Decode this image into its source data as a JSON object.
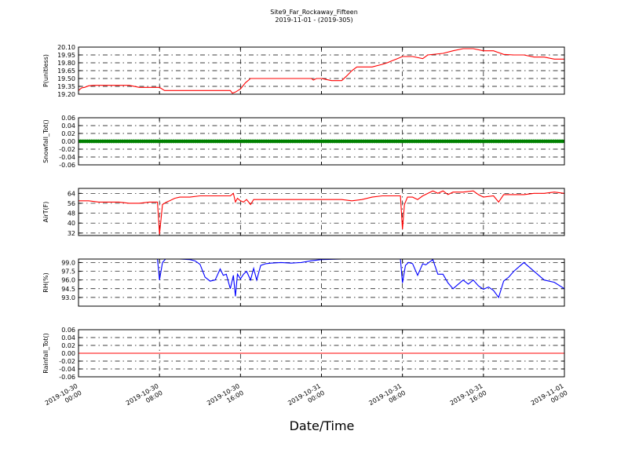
{
  "figure": {
    "title": "Site9_Far_Rockaway_Fifteen",
    "subtitle": "2019-11-01 - (2019-305)",
    "xlabel": "Date/Time"
  },
  "chart_data": [
    {
      "type": "line",
      "ylabel": "P(unitless)",
      "ylim": [
        19.2,
        20.1
      ],
      "yticks": [
        "20.10",
        "19.95",
        "19.80",
        "19.65",
        "19.50",
        "19.35",
        "19.20"
      ],
      "grid": true,
      "color": "#ff0000",
      "x_unit": "hours since 2019-10-30 00:00",
      "x": [
        0,
        0.3,
        0.6,
        1.0,
        1.5,
        2.5,
        4,
        5,
        6,
        7.5,
        8,
        8.5,
        10,
        11,
        12,
        13,
        14,
        15,
        15.2,
        15.5,
        16,
        16.5,
        17,
        18,
        19,
        20,
        21,
        22,
        23,
        23.2,
        23.5,
        24,
        24.5,
        25,
        26,
        26.5,
        27,
        27.5,
        28,
        29,
        30,
        30.5,
        31,
        31.5,
        32,
        32.5,
        33,
        34,
        34.5,
        36,
        37,
        38,
        39,
        40,
        41,
        42,
        43,
        44,
        45,
        46,
        47,
        48
      ],
      "values": [
        19.27,
        19.32,
        19.33,
        19.36,
        19.37,
        19.37,
        19.37,
        19.37,
        19.33,
        19.33,
        19.33,
        19.27,
        19.27,
        19.27,
        19.27,
        19.27,
        19.27,
        19.27,
        19.22,
        19.24,
        19.3,
        19.42,
        19.5,
        19.5,
        19.5,
        19.5,
        19.5,
        19.5,
        19.5,
        19.47,
        19.5,
        19.5,
        19.48,
        19.46,
        19.46,
        19.55,
        19.65,
        19.72,
        19.72,
        19.72,
        19.77,
        19.8,
        19.84,
        19.88,
        19.92,
        19.92,
        19.92,
        19.88,
        19.95,
        19.98,
        20.03,
        20.07,
        20.07,
        20.03,
        20.03,
        19.96,
        19.95,
        19.95,
        19.91,
        19.91,
        19.87,
        19.87
      ]
    },
    {
      "type": "scatter",
      "ylabel": "Snowfall_Tot()",
      "ylim": [
        -0.06,
        0.06
      ],
      "yticks": [
        "0.06",
        "0.04",
        "0.02",
        "0.00",
        "-0.02",
        "-0.04",
        "-0.06"
      ],
      "grid": true,
      "color": "#008000",
      "x_unit": "hours since 2019-10-30 00:00",
      "x_range": [
        0,
        48
      ],
      "value": 0.0
    },
    {
      "type": "line",
      "ylabel": "AirT(F)",
      "ylim": [
        30,
        68
      ],
      "yticks": [
        "64",
        "56",
        "48",
        "40",
        "32"
      ],
      "grid": true,
      "color": "#ff0000",
      "x_unit": "hours since 2019-10-30 00:00",
      "x": [
        0,
        1,
        2,
        3,
        4,
        5,
        6,
        7,
        7.8,
        8.0,
        8.3,
        8.7,
        9,
        9.5,
        10,
        11,
        12,
        13,
        14,
        15,
        15.3,
        15.5,
        15.7,
        16,
        16.3,
        16.6,
        17,
        17.3,
        17.6,
        18,
        19,
        20,
        21,
        22,
        23,
        24,
        25,
        26,
        27,
        28,
        29,
        30,
        31,
        31.8,
        32.0,
        32.2,
        32.5,
        33,
        33.5,
        34,
        35,
        35.5,
        36,
        36.5,
        37,
        38,
        39,
        39.5,
        40,
        41,
        41.5,
        42,
        43,
        44,
        45,
        46,
        47,
        48
      ],
      "values": [
        58,
        58,
        57,
        57,
        57,
        56,
        56,
        57,
        57,
        31,
        55,
        57,
        58,
        60,
        61,
        61,
        62,
        62,
        62,
        62,
        64,
        57,
        60,
        58,
        57,
        59,
        55,
        59,
        59,
        59,
        59,
        59,
        59,
        59,
        59,
        59,
        59,
        59,
        58,
        59,
        61,
        62,
        62,
        62,
        35,
        55,
        61,
        61,
        59,
        62,
        66,
        64,
        66,
        63,
        65,
        65,
        66,
        63,
        61,
        62,
        57,
        63,
        63,
        63,
        64,
        64,
        65,
        64
      ]
    },
    {
      "type": "line",
      "ylabel": "RH(%)",
      "ylim": [
        91.5,
        99.6
      ],
      "yticks": [
        "99.0",
        "97.5",
        "96.0",
        "94.5",
        "93.0"
      ],
      "grid": true,
      "color": "#0000ff",
      "x_unit": "hours since 2019-10-30 00:00",
      "x": [
        0,
        3,
        6,
        7.5,
        7.8,
        8.0,
        8.3,
        8.6,
        9,
        10,
        11,
        11.5,
        12,
        12.5,
        13,
        13.5,
        14,
        14.3,
        14.6,
        15,
        15.3,
        15.5,
        15.7,
        16,
        16.3,
        16.6,
        17,
        17.3,
        17.6,
        18,
        18.5,
        19,
        20,
        21,
        22,
        23,
        24,
        26,
        28,
        30,
        31,
        31.8,
        32.0,
        32.3,
        32.6,
        33,
        33.5,
        34,
        34.3,
        35,
        35.5,
        36,
        36.5,
        37,
        38,
        38.5,
        39,
        39.5,
        40,
        40.5,
        41,
        41.5,
        42,
        42.5,
        43,
        44,
        45,
        46,
        47,
        48
      ],
      "values": [
        99.6,
        99.6,
        99.6,
        99.6,
        99.6,
        96.0,
        99.0,
        99.6,
        99.6,
        99.6,
        99.5,
        99.3,
        98.7,
        96.5,
        95.8,
        96.0,
        97.9,
        96.8,
        97.0,
        94.5,
        96.8,
        93.2,
        97.0,
        96.2,
        97.0,
        97.5,
        96.0,
        98.0,
        96.0,
        98.5,
        98.8,
        98.9,
        99.0,
        98.9,
        99.0,
        99.3,
        99.5,
        99.6,
        99.6,
        99.6,
        99.6,
        99.6,
        95.5,
        98.5,
        99.0,
        98.8,
        96.8,
        98.8,
        98.6,
        99.5,
        97.0,
        97.0,
        95.5,
        94.5,
        96.0,
        95.3,
        96.0,
        95.0,
        94.4,
        94.8,
        94.2,
        93.0,
        95.8,
        96.5,
        97.5,
        99.0,
        97.5,
        96.0,
        95.6,
        94.5
      ]
    },
    {
      "type": "line",
      "ylabel": "Rainfall_Tot()",
      "ylim": [
        -0.06,
        0.06
      ],
      "yticks": [
        "0.06",
        "0.04",
        "0.02",
        "0.00",
        "-0.02",
        "-0.04",
        "-0.06"
      ],
      "grid": true,
      "color": "#ff0000",
      "x_unit": "hours since 2019-10-30 00:00",
      "x": [
        0,
        48
      ],
      "values": [
        0.0,
        0.0
      ]
    }
  ],
  "xticks": [
    {
      "line1": "2019-10-30",
      "line2": "00:00"
    },
    {
      "line1": "2019-10-30",
      "line2": "08:00"
    },
    {
      "line1": "2019-10-30",
      "line2": "16:00"
    },
    {
      "line1": "2019-10-31",
      "line2": "00:00"
    },
    {
      "line1": "2019-10-31",
      "line2": "08:00"
    },
    {
      "line1": "2019-10-31",
      "line2": "16:00"
    },
    {
      "line1": "2019-11-01",
      "line2": "00:00"
    }
  ]
}
